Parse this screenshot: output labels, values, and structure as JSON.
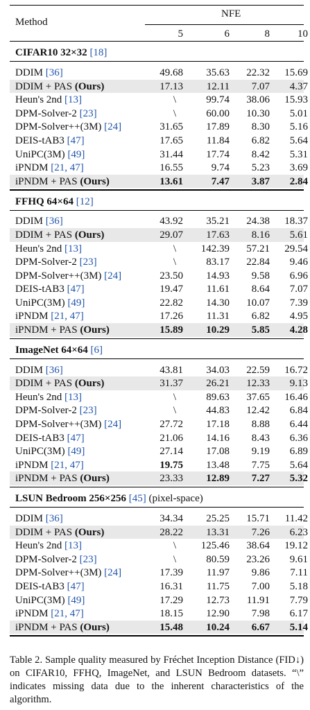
{
  "header": {
    "method_label": "Method",
    "nfe_label": "NFE",
    "nfe_values": [
      "5",
      "6",
      "8",
      "10"
    ]
  },
  "sections": [
    {
      "title_bold": "CIFAR10 32×32",
      "title_ref": "[18]",
      "title_suffix": "",
      "rows": [
        {
          "name": "DDIM ",
          "refs": "[36]",
          "ours": false,
          "shade": false,
          "values": [
            "49.68",
            "35.63",
            "22.32",
            "15.69"
          ],
          "bold": [
            false,
            false,
            false,
            false
          ]
        },
        {
          "name": "DDIM + PAS ",
          "refs": "",
          "ours": true,
          "shade": true,
          "values": [
            "17.13",
            "12.11",
            "7.07",
            "4.37"
          ],
          "bold": [
            false,
            false,
            false,
            false
          ]
        },
        {
          "name": "Heun's 2nd ",
          "refs": "[13]",
          "ours": false,
          "shade": false,
          "values": [
            "\\",
            "99.74",
            "38.06",
            "15.93"
          ],
          "bold": [
            false,
            false,
            false,
            false
          ]
        },
        {
          "name": "DPM-Solver-2 ",
          "refs": "[23]",
          "ours": false,
          "shade": false,
          "values": [
            "\\",
            "60.00",
            "10.30",
            "5.01"
          ],
          "bold": [
            false,
            false,
            false,
            false
          ]
        },
        {
          "name": "DPM-Solver++(3M) ",
          "refs": "[24]",
          "ours": false,
          "shade": false,
          "values": [
            "31.65",
            "17.89",
            "8.30",
            "5.16"
          ],
          "bold": [
            false,
            false,
            false,
            false
          ]
        },
        {
          "name": "DEIS-tAB3 ",
          "refs": "[47]",
          "ours": false,
          "shade": false,
          "values": [
            "17.65",
            "11.84",
            "6.82",
            "5.64"
          ],
          "bold": [
            false,
            false,
            false,
            false
          ]
        },
        {
          "name": "UniPC(3M) ",
          "refs": "[49]",
          "ours": false,
          "shade": false,
          "values": [
            "31.44",
            "17.74",
            "8.42",
            "5.31"
          ],
          "bold": [
            false,
            false,
            false,
            false
          ]
        },
        {
          "name": "iPNDM ",
          "refs": "[21, 47]",
          "ours": false,
          "shade": false,
          "values": [
            "16.55",
            "9.74",
            "5.23",
            "3.69"
          ],
          "bold": [
            false,
            false,
            false,
            false
          ]
        },
        {
          "name": "iPNDM + PAS ",
          "refs": "",
          "ours": true,
          "shade": true,
          "values": [
            "13.61",
            "7.47",
            "3.87",
            "2.84"
          ],
          "bold": [
            true,
            true,
            true,
            true
          ]
        }
      ]
    },
    {
      "title_bold": "FFHQ 64×64",
      "title_ref": "[12]",
      "title_suffix": "",
      "rows": [
        {
          "name": "DDIM ",
          "refs": "[36]",
          "ours": false,
          "shade": false,
          "values": [
            "43.92",
            "35.21",
            "24.38",
            "18.37"
          ],
          "bold": [
            false,
            false,
            false,
            false
          ]
        },
        {
          "name": "DDIM + PAS ",
          "refs": "",
          "ours": true,
          "shade": true,
          "values": [
            "29.07",
            "17.63",
            "8.16",
            "5.61"
          ],
          "bold": [
            false,
            false,
            false,
            false
          ]
        },
        {
          "name": "Heun's 2nd ",
          "refs": "[13]",
          "ours": false,
          "shade": false,
          "values": [
            "\\",
            "142.39",
            "57.21",
            "29.54"
          ],
          "bold": [
            false,
            false,
            false,
            false
          ]
        },
        {
          "name": "DPM-Solver-2 ",
          "refs": "[23]",
          "ours": false,
          "shade": false,
          "values": [
            "\\",
            "83.17",
            "22.84",
            "9.46"
          ],
          "bold": [
            false,
            false,
            false,
            false
          ]
        },
        {
          "name": "DPM-Solver++(3M) ",
          "refs": "[24]",
          "ours": false,
          "shade": false,
          "values": [
            "23.50",
            "14.93",
            "9.58",
            "6.96"
          ],
          "bold": [
            false,
            false,
            false,
            false
          ]
        },
        {
          "name": "DEIS-tAB3 ",
          "refs": "[47]",
          "ours": false,
          "shade": false,
          "values": [
            "19.47",
            "11.61",
            "8.64",
            "7.07"
          ],
          "bold": [
            false,
            false,
            false,
            false
          ]
        },
        {
          "name": "UniPC(3M) ",
          "refs": "[49]",
          "ours": false,
          "shade": false,
          "values": [
            "22.82",
            "14.30",
            "10.07",
            "7.39"
          ],
          "bold": [
            false,
            false,
            false,
            false
          ]
        },
        {
          "name": "iPNDM ",
          "refs": "[21, 47]",
          "ours": false,
          "shade": false,
          "values": [
            "17.26",
            "11.31",
            "6.82",
            "4.95"
          ],
          "bold": [
            false,
            false,
            false,
            false
          ]
        },
        {
          "name": "iPNDM + PAS ",
          "refs": "",
          "ours": true,
          "shade": true,
          "values": [
            "15.89",
            "10.29",
            "5.85",
            "4.28"
          ],
          "bold": [
            true,
            true,
            true,
            true
          ]
        }
      ]
    },
    {
      "title_bold": "ImageNet 64×64",
      "title_ref": "[6]",
      "title_suffix": "",
      "rows": [
        {
          "name": "DDIM ",
          "refs": "[36]",
          "ours": false,
          "shade": false,
          "values": [
            "43.81",
            "34.03",
            "22.59",
            "16.72"
          ],
          "bold": [
            false,
            false,
            false,
            false
          ]
        },
        {
          "name": "DDIM + PAS ",
          "refs": "",
          "ours": true,
          "shade": true,
          "values": [
            "31.37",
            "26.21",
            "12.33",
            "9.13"
          ],
          "bold": [
            false,
            false,
            false,
            false
          ]
        },
        {
          "name": "Heun's 2nd ",
          "refs": "[13]",
          "ours": false,
          "shade": false,
          "values": [
            "\\",
            "89.63",
            "37.65",
            "16.46"
          ],
          "bold": [
            false,
            false,
            false,
            false
          ]
        },
        {
          "name": "DPM-Solver-2 ",
          "refs": "[23]",
          "ours": false,
          "shade": false,
          "values": [
            "\\",
            "44.83",
            "12.42",
            "6.84"
          ],
          "bold": [
            false,
            false,
            false,
            false
          ]
        },
        {
          "name": "DPM-Solver++(3M) ",
          "refs": "[24]",
          "ours": false,
          "shade": false,
          "values": [
            "27.72",
            "17.18",
            "8.88",
            "6.44"
          ],
          "bold": [
            false,
            false,
            false,
            false
          ]
        },
        {
          "name": "DEIS-tAB3 ",
          "refs": "[47]",
          "ours": false,
          "shade": false,
          "values": [
            "21.06",
            "14.16",
            "8.43",
            "6.36"
          ],
          "bold": [
            false,
            false,
            false,
            false
          ]
        },
        {
          "name": "UniPC(3M) ",
          "refs": "[49]",
          "ours": false,
          "shade": false,
          "values": [
            "27.14",
            "17.08",
            "9.19",
            "6.89"
          ],
          "bold": [
            false,
            false,
            false,
            false
          ]
        },
        {
          "name": "iPNDM ",
          "refs": "[21, 47]",
          "ours": false,
          "shade": false,
          "values": [
            "19.75",
            "13.48",
            "7.75",
            "5.64"
          ],
          "bold": [
            true,
            false,
            false,
            false
          ]
        },
        {
          "name": "iPNDM + PAS ",
          "refs": "",
          "ours": true,
          "shade": true,
          "values": [
            "23.33",
            "12.89",
            "7.27",
            "5.32"
          ],
          "bold": [
            false,
            true,
            true,
            true
          ]
        }
      ]
    },
    {
      "title_bold": "LSUN Bedroom 256×256",
      "title_ref": "[45]",
      "title_suffix": " (pixel-space)",
      "rows": [
        {
          "name": "DDIM ",
          "refs": "[36]",
          "ours": false,
          "shade": false,
          "values": [
            "34.34",
            "25.25",
            "15.71",
            "11.42"
          ],
          "bold": [
            false,
            false,
            false,
            false
          ]
        },
        {
          "name": "DDIM + PAS ",
          "refs": "",
          "ours": true,
          "shade": true,
          "values": [
            "28.22",
            "13.31",
            "7.26",
            "6.23"
          ],
          "bold": [
            false,
            false,
            false,
            false
          ]
        },
        {
          "name": "Heun's 2nd ",
          "refs": "[13]",
          "ours": false,
          "shade": false,
          "values": [
            "\\",
            "125.46",
            "38.64",
            "19.12"
          ],
          "bold": [
            false,
            false,
            false,
            false
          ]
        },
        {
          "name": "DPM-Solver-2 ",
          "refs": "[23]",
          "ours": false,
          "shade": false,
          "values": [
            "\\",
            "80.59",
            "23.26",
            "9.61"
          ],
          "bold": [
            false,
            false,
            false,
            false
          ]
        },
        {
          "name": "DPM-Solver++(3M) ",
          "refs": "[24]",
          "ours": false,
          "shade": false,
          "values": [
            "17.39",
            "11.97",
            "9.86",
            "7.11"
          ],
          "bold": [
            false,
            false,
            false,
            false
          ]
        },
        {
          "name": "DEIS-tAB3 ",
          "refs": "[47]",
          "ours": false,
          "shade": false,
          "values": [
            "16.31",
            "11.75",
            "7.00",
            "5.18"
          ],
          "bold": [
            false,
            false,
            false,
            false
          ]
        },
        {
          "name": "UniPC(3M) ",
          "refs": "[49]",
          "ours": false,
          "shade": false,
          "values": [
            "17.29",
            "12.73",
            "11.91",
            "7.79"
          ],
          "bold": [
            false,
            false,
            false,
            false
          ]
        },
        {
          "name": "iPNDM ",
          "refs": "[21, 47]",
          "ours": false,
          "shade": false,
          "values": [
            "18.15",
            "12.90",
            "7.98",
            "6.17"
          ],
          "bold": [
            false,
            false,
            false,
            false
          ]
        },
        {
          "name": "iPNDM + PAS ",
          "refs": "",
          "ours": true,
          "shade": true,
          "values": [
            "15.48",
            "10.24",
            "6.67",
            "5.14"
          ],
          "bold": [
            true,
            true,
            true,
            true
          ]
        }
      ]
    }
  ],
  "ours_label": "(Ours)",
  "caption": "Table 2.  Sample quality measured by Fréchet Inception Distance (FID↓) on CIFAR10, FFHQ, ImageNet, and LSUN Bedroom datasets. “\\” indicates missing data due to the inherent characteristics of the algorithm.",
  "colors": {
    "shade": "#e8e8e8",
    "citation": "#2255aa"
  }
}
